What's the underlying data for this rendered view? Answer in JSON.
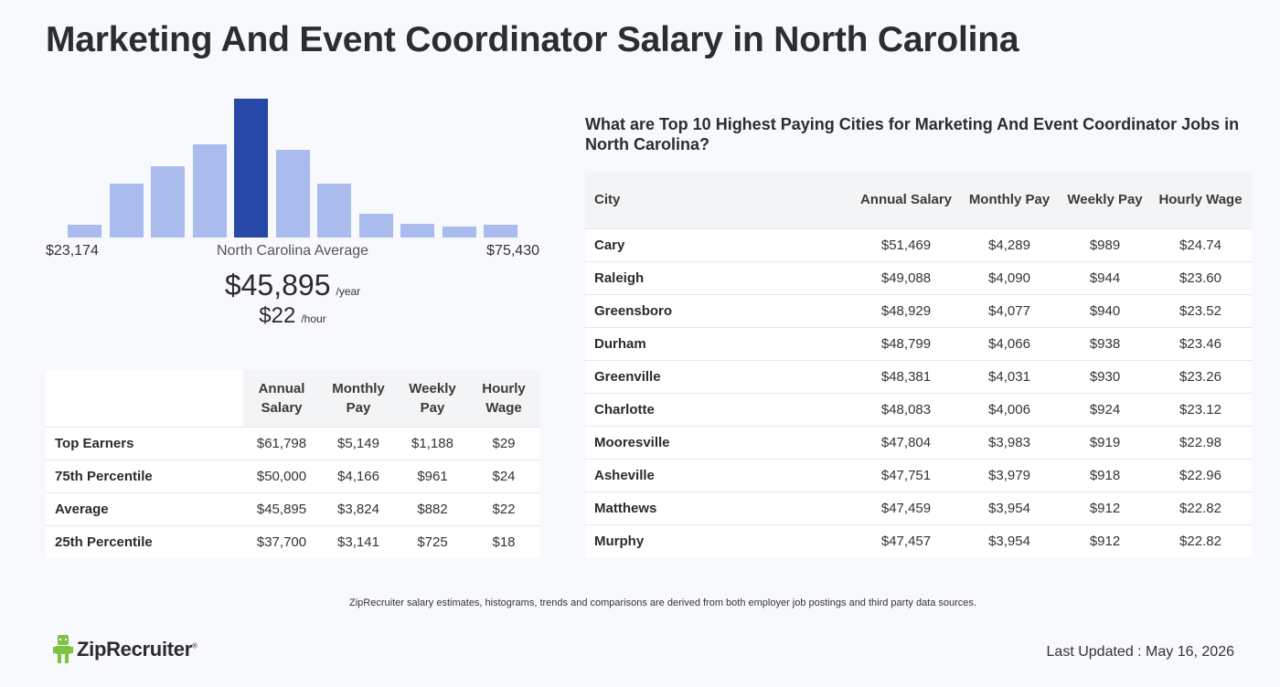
{
  "page": {
    "title": "Marketing And Event Coordinator Salary in North Carolina"
  },
  "histogram": {
    "min_label": "$23,174",
    "max_label": "$75,430",
    "center_label": "North Carolina Average",
    "bar_heights_pct": [
      9,
      39,
      51,
      67,
      100,
      63,
      39,
      17,
      10,
      8,
      9
    ],
    "active_index": 4,
    "bar_color": "#aabbee",
    "active_color": "#2748a6"
  },
  "summary": {
    "annual": "$45,895",
    "annual_unit": "/year",
    "hourly": "$22",
    "hourly_unit": "/hour"
  },
  "percentile_table": {
    "headers": [
      "Annual Salary",
      "Monthly Pay",
      "Weekly Pay",
      "Hourly Wage"
    ],
    "rows": [
      {
        "label": "Top Earners",
        "annual": "$61,798",
        "monthly": "$5,149",
        "weekly": "$1,188",
        "hourly": "$29"
      },
      {
        "label": "75th Percentile",
        "annual": "$50,000",
        "monthly": "$4,166",
        "weekly": "$961",
        "hourly": "$24"
      },
      {
        "label": "Average",
        "annual": "$45,895",
        "monthly": "$3,824",
        "weekly": "$882",
        "hourly": "$22"
      },
      {
        "label": "25th Percentile",
        "annual": "$37,700",
        "monthly": "$3,141",
        "weekly": "$725",
        "hourly": "$18"
      }
    ]
  },
  "cities": {
    "heading": "What are Top 10 Highest Paying Cities for Marketing And Event Coordinator Jobs in North Carolina?",
    "headers": [
      "City",
      "Annual Salary",
      "Monthly Pay",
      "Weekly Pay",
      "Hourly Wage"
    ],
    "rows": [
      {
        "city": "Cary",
        "annual": "$51,469",
        "monthly": "$4,289",
        "weekly": "$989",
        "hourly": "$24.74"
      },
      {
        "city": "Raleigh",
        "annual": "$49,088",
        "monthly": "$4,090",
        "weekly": "$944",
        "hourly": "$23.60"
      },
      {
        "city": "Greensboro",
        "annual": "$48,929",
        "monthly": "$4,077",
        "weekly": "$940",
        "hourly": "$23.52"
      },
      {
        "city": "Durham",
        "annual": "$48,799",
        "monthly": "$4,066",
        "weekly": "$938",
        "hourly": "$23.46"
      },
      {
        "city": "Greenville",
        "annual": "$48,381",
        "monthly": "$4,031",
        "weekly": "$930",
        "hourly": "$23.26"
      },
      {
        "city": "Charlotte",
        "annual": "$48,083",
        "monthly": "$4,006",
        "weekly": "$924",
        "hourly": "$23.12"
      },
      {
        "city": "Mooresville",
        "annual": "$47,804",
        "monthly": "$3,983",
        "weekly": "$919",
        "hourly": "$22.98"
      },
      {
        "city": "Asheville",
        "annual": "$47,751",
        "monthly": "$3,979",
        "weekly": "$918",
        "hourly": "$22.96"
      },
      {
        "city": "Matthews",
        "annual": "$47,459",
        "monthly": "$3,954",
        "weekly": "$912",
        "hourly": "$22.82"
      },
      {
        "city": "Murphy",
        "annual": "$47,457",
        "monthly": "$3,954",
        "weekly": "$912",
        "hourly": "$22.82"
      }
    ]
  },
  "footer": {
    "disclaimer": "ZipRecruiter salary estimates, histograms, trends and comparisons are derived from both employer job postings and third party data sources.",
    "logo_text": "ZipRecruiter",
    "logo_mark": "®",
    "logo_icon": "ziprecruiter-mascot-icon",
    "logo_color": "#7dc242",
    "last_updated": "Last Updated : May 16, 2026"
  }
}
